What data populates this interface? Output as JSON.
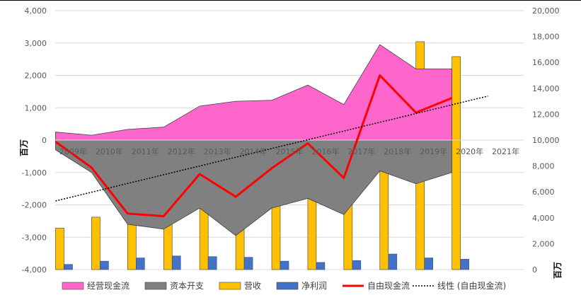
{
  "chart_data": {
    "type": "bar",
    "categories": [
      "2009年",
      "2010年",
      "2011年",
      "2012年",
      "2013年",
      "2014年",
      "2015年",
      "2016年",
      "2017年",
      "2018年",
      "2019年",
      "2020年",
      "2021年"
    ],
    "left_axis": {
      "unit": "百万",
      "ylim": [
        -4000,
        4000
      ],
      "ticks": [
        "4,000",
        "3,000",
        "2,000",
        "1,000",
        "0",
        "-1,000",
        "-2,000",
        "-3,000",
        "-4,000"
      ],
      "tick_values": [
        4000,
        3000,
        2000,
        1000,
        0,
        -1000,
        -2000,
        -3000,
        -4000
      ]
    },
    "right_axis": {
      "unit": "百万",
      "ylim": [
        0,
        20000
      ],
      "ticks": [
        "20,000",
        "18,000",
        "16,000",
        "14,000",
        "12,000",
        "10,000",
        "8,000",
        "6,000",
        "4,000",
        "2,000",
        "0"
      ],
      "tick_values": [
        20000,
        18000,
        16000,
        14000,
        12000,
        10000,
        8000,
        6000,
        4000,
        2000,
        0
      ]
    },
    "series": [
      {
        "name": "经营现金流",
        "type": "area",
        "axis": "left",
        "color": "#FF66CC",
        "values": [
          250,
          150,
          330,
          400,
          1050,
          1200,
          1230,
          1700,
          1100,
          2950,
          2200,
          2200,
          null
        ]
      },
      {
        "name": "资本开支",
        "type": "area",
        "axis": "left",
        "color": "#808080",
        "values": [
          -300,
          -1000,
          -2600,
          -2750,
          -2100,
          -2950,
          -2100,
          -1800,
          -2300,
          -950,
          -1350,
          -1000,
          null
        ]
      },
      {
        "name": "营收",
        "type": "bar",
        "axis": "right",
        "color": "#FFC000",
        "values": [
          3200,
          4050,
          5100,
          5850,
          6800,
          8050,
          7800,
          8150,
          11400,
          16400,
          17600,
          16450,
          null
        ]
      },
      {
        "name": "净利润",
        "type": "bar",
        "axis": "right",
        "color": "#4472C4",
        "values": [
          400,
          650,
          900,
          1050,
          1000,
          950,
          650,
          550,
          700,
          1200,
          900,
          800,
          null
        ]
      },
      {
        "name": "自由现金流",
        "type": "line",
        "axis": "left",
        "color": "#FF0000",
        "values": [
          -50,
          -850,
          -2270,
          -2350,
          -1050,
          -1750,
          -870,
          -100,
          -1170,
          2000,
          850,
          1300,
          null
        ]
      },
      {
        "name": "线性 (自由现金流)",
        "type": "trendline",
        "axis": "left",
        "color": "#000000",
        "values": [
          -1880,
          -1610,
          -1340,
          -1070,
          -800,
          -530,
          -260,
          10,
          280,
          550,
          820,
          1090,
          1360
        ]
      }
    ],
    "legend_placement": "bottom",
    "grid": true
  }
}
